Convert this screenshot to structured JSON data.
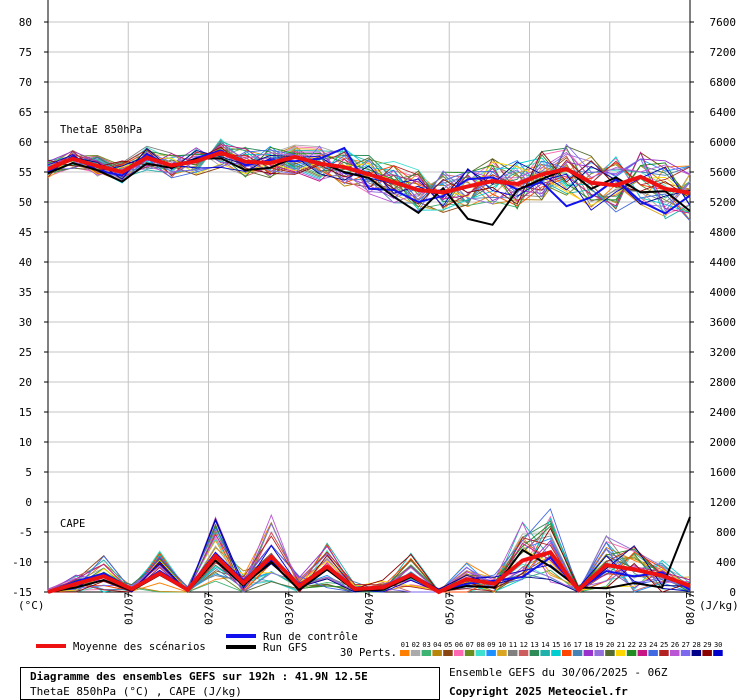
{
  "chart_data": {
    "type": "line",
    "left_axis": {
      "label": "(°C)",
      "ticks": [
        -15,
        -10,
        -5,
        0,
        5,
        10,
        15,
        20,
        25,
        30,
        35,
        40,
        45,
        50,
        55,
        60,
        65,
        70,
        75,
        80
      ],
      "tick_labels": [
        "-15",
        "-10",
        "-5",
        "0",
        "5",
        "10",
        "15",
        "20",
        "25",
        "30",
        "35",
        "40",
        "45",
        "50",
        "55",
        "60",
        "65",
        "70",
        "75",
        "80"
      ],
      "range": [
        -15,
        80
      ]
    },
    "right_axis": {
      "label": "(J/kg)",
      "ticks": [
        0,
        400,
        800,
        1200,
        1600,
        2000,
        2400,
        2800,
        3200,
        3600,
        4000,
        4400,
        4800,
        5200,
        5600,
        6000,
        6400,
        6800,
        7200,
        7600
      ],
      "range": [
        0,
        7600
      ]
    },
    "x_axis": {
      "days": 8,
      "tick_labels": [
        "01/07",
        "02/07",
        "03/07",
        "04/07",
        "05/07",
        "06/07",
        "07/07",
        "08/07"
      ],
      "tick_day_index": [
        1,
        2,
        3,
        4,
        5,
        6,
        7,
        8
      ]
    },
    "panels": {
      "theta": "ThetaE 850hPa",
      "cape": "CAPE"
    },
    "series": [
      {
        "name": "Moyenne des scénarios",
        "color": "#ee1111",
        "theta_e_mean": [
          55.5,
          57.2,
          56.0,
          55.0,
          57.4,
          56.1,
          56.8,
          58.2,
          56.7,
          56.5,
          57.5,
          56.4,
          55.8,
          54.6,
          53.3,
          52.0,
          51.6,
          52.6,
          53.5,
          53.0,
          54.6,
          55.5,
          53.2,
          52.8,
          54.2,
          52.2,
          51.5
        ],
        "cape_mean_jkg": [
          0,
          110,
          210,
          40,
          250,
          30,
          480,
          120,
          470,
          80,
          340,
          40,
          60,
          230,
          0,
          170,
          110,
          420,
          530,
          30,
          360,
          300,
          220,
          80
        ]
      },
      {
        "name": "Run de contrôle",
        "color": "#1111ee",
        "theta_e": [
          55.0,
          57.6,
          55.3,
          54.4,
          58.0,
          55.8,
          57.3,
          58.6,
          56.1,
          57.0,
          56.8,
          57.2,
          59.0,
          52.2,
          52.0,
          50.0,
          51.0,
          53.8,
          54.1,
          52.1,
          53.3,
          49.3,
          50.8,
          53.8,
          50.1,
          48.1,
          51.1
        ],
        "cape_jkg": [
          0,
          140,
          250,
          40,
          280,
          40,
          520,
          150,
          420,
          110,
          300,
          60,
          50,
          240,
          10,
          110,
          150,
          200,
          460,
          20,
          280,
          210,
          260,
          30
        ]
      },
      {
        "name": "Run GFS",
        "color": "#000000",
        "theta_e": [
          54.8,
          56.5,
          55.3,
          53.4,
          56.4,
          55.7,
          57.2,
          57.3,
          55.3,
          55.7,
          57.5,
          56.6,
          55.0,
          54.0,
          50.9,
          48.2,
          52.3,
          47.2,
          46.2,
          52.0,
          53.8,
          55.5,
          52.2,
          54.1,
          51.6,
          51.8,
          48.5
        ],
        "cape_jkg": [
          0,
          60,
          160,
          20,
          230,
          20,
          420,
          90,
          400,
          30,
          300,
          20,
          30,
          200,
          0,
          80,
          60,
          560,
          340,
          60,
          50,
          120,
          60,
          1000
        ]
      }
    ],
    "perturbations": {
      "count_label": "30 Perts.",
      "members": [
        "01",
        "02",
        "03",
        "04",
        "05",
        "06",
        "07",
        "08",
        "09",
        "10",
        "11",
        "12",
        "13",
        "14",
        "15",
        "16",
        "17",
        "18",
        "19",
        "20",
        "21",
        "22",
        "23",
        "24",
        "25",
        "26",
        "27",
        "28",
        "29",
        "30"
      ],
      "colors": [
        "#ff7f00",
        "#aaaaaa",
        "#3cb371",
        "#b8860b",
        "#8b4513",
        "#ff69b4",
        "#6b8e23",
        "#40e0d0",
        "#1e90ff",
        "#daa520",
        "#808080",
        "#cd5c5c",
        "#2e8b57",
        "#20b2aa",
        "#00ced1",
        "#ff4500",
        "#4682b4",
        "#9932cc",
        "#9370db",
        "#556b2f",
        "#ffd700",
        "#228b22",
        "#c71585",
        "#4169e1",
        "#b22222",
        "#ba55d3",
        "#7b68ee",
        "#00008b",
        "#8b0000",
        "#0000cd"
      ]
    }
  },
  "legend": {
    "mean": "Moyenne des scénarios",
    "control": "Run de contrôle",
    "gfs": "Run GFS",
    "perts": "30 Perts."
  },
  "footer": {
    "title": "Diagramme des ensembles GEFS sur 192h : 41.9N 12.5E",
    "subtitle": "ThetaE 850hPa (°C) , CAPE (J/kg)",
    "run": "Ensemble GEFS du 30/06/2025 - 06Z",
    "copyright": "Copyright 2025 Meteociel.fr"
  }
}
